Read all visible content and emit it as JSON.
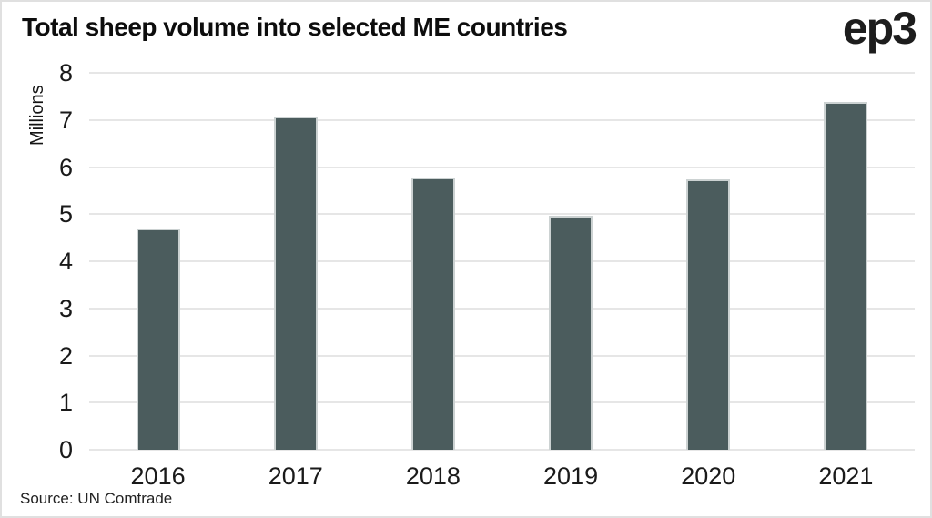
{
  "page": {
    "title": "Total sheep volume into selected ME countries",
    "logo": "ep3",
    "source": "Source: UN Comtrade"
  },
  "chart_data": {
    "type": "bar",
    "title": "Total sheep volume into selected ME countries",
    "categories": [
      "2016",
      "2017",
      "2018",
      "2019",
      "2020",
      "2021"
    ],
    "values": [
      4.7,
      7.07,
      5.77,
      4.97,
      5.73,
      7.38
    ],
    "xlabel": "",
    "ylabel": "Millions",
    "ylim": [
      0,
      8
    ],
    "yticks": [
      0,
      1,
      2,
      3,
      4,
      5,
      6,
      7,
      8
    ],
    "grid": "horizontal",
    "legend": "none",
    "bar_color": "#4b5c5d",
    "bar_border_color": "#ccd2d2",
    "gridline_color": "#e6e6e6",
    "text_color": "#1a1a1a"
  }
}
